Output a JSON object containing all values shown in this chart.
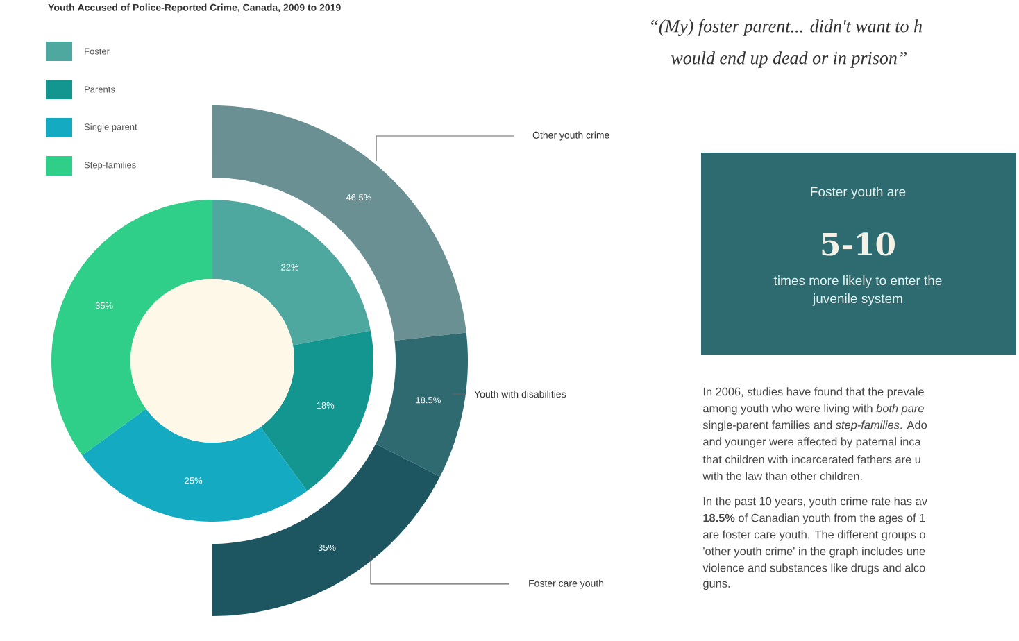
{
  "chart_data": [
    {
      "type": "donut",
      "title": "Youth Accused of Police-Reported Crime, Canada, 2009 to 2019",
      "categories": [
        "Foster",
        "Parents",
        "Single parent",
        "Step-families"
      ],
      "values": [
        22,
        18,
        25,
        35
      ],
      "colors": [
        "#4fa8a0",
        "#139590",
        "#14aac2",
        "#2fcf8a"
      ],
      "value_labels": [
        "22%",
        "18%",
        "25%",
        "35%"
      ],
      "legend": "top left"
    },
    {
      "type": "donut",
      "categories": [
        "Other youth crime",
        "Youth with disabilities",
        "Foster care youth"
      ],
      "values": [
        46.5,
        18.5,
        35
      ],
      "colors": [
        "#6a9094",
        "#2f6a70",
        "#1d5560"
      ],
      "value_labels": [
        "46.5%",
        "18.5%",
        "35%"
      ]
    },
    {
      "type": "other",
      "annotations": [
        "“(My) foster parent... didn't want to h",
        "would end up dead or in prison”",
        "Foster youth are",
        "5-10",
        "times more likely to enter the",
        "juvenile system",
        "In 2006, studies have found that the prevale",
        "among youth who were living with *both pare*",
        "single-parent families and *step-families*. Ado",
        "and younger were affected by paternal inca",
        "that children with incarcerated fathers are u",
        "with the law than other children.",
        "In the past 10 years, youth crime rate has av",
        "**18.5%** of Canadian youth from the ages of 1",
        "are foster care youth. The different groups o",
        "'other youth crime' in the graph includes une",
        "violence and substances like drugs and alco",
        "guns."
      ]
    }
  ]
}
